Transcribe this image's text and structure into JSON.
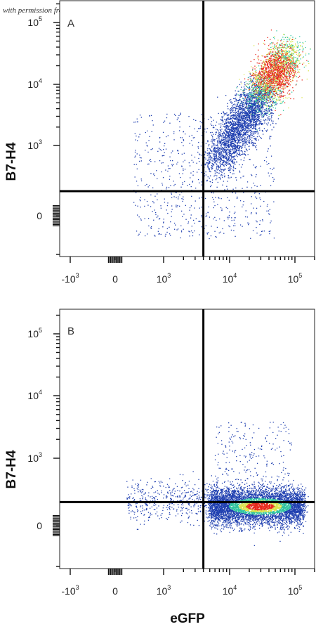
{
  "watermark": "with permission from R&D Systems",
  "colors": {
    "density_low": "#1f3fb0",
    "density_mid": "#2fc4a0",
    "density_mid2": "#d9e54a",
    "density_high": "#e8281c",
    "gate_line": "#000000",
    "frame": "#222222"
  },
  "chart_data": [
    {
      "type": "scatter",
      "panel_label": "A",
      "xlabel": "",
      "ylabel": "B7-H4",
      "x_scale": "biexponential",
      "y_scale": "biexponential",
      "xlim": [
        -3000,
        200000
      ],
      "ylim": [
        -1000,
        200000
      ],
      "x_ticks": [
        {
          "base": "-10",
          "exp": "3"
        },
        {
          "base": "0",
          "exp": ""
        },
        {
          "base": "10",
          "exp": "3"
        },
        {
          "base": "10",
          "exp": "4"
        },
        {
          "base": "10",
          "exp": "5"
        }
      ],
      "y_ticks": [
        {
          "base": "0",
          "exp": ""
        },
        {
          "base": "10",
          "exp": "3"
        },
        {
          "base": "10",
          "exp": "4"
        },
        {
          "base": "10",
          "exp": "5"
        }
      ],
      "quadrant_gates": {
        "x": 4000,
        "y": 350
      },
      "populations": [
        {
          "description": "main double-positive cluster",
          "x_center": 25000,
          "y_center": 7000,
          "spread": "diagonal, 10^3.8–10^5 in x, 10^2.8–10^4.5 in y"
        },
        {
          "description": "sparse scatter",
          "x_center": 2000,
          "y_center": 600
        }
      ]
    },
    {
      "type": "scatter",
      "panel_label": "B",
      "xlabel": "eGFP",
      "ylabel": "B7-H4",
      "x_scale": "biexponential",
      "y_scale": "biexponential",
      "xlim": [
        -3000,
        200000
      ],
      "ylim": [
        -1000,
        200000
      ],
      "x_ticks": [
        {
          "base": "-10",
          "exp": "3"
        },
        {
          "base": "0",
          "exp": ""
        },
        {
          "base": "10",
          "exp": "3"
        },
        {
          "base": "10",
          "exp": "4"
        },
        {
          "base": "10",
          "exp": "5"
        }
      ],
      "y_ticks": [
        {
          "base": "0",
          "exp": ""
        },
        {
          "base": "10",
          "exp": "3"
        },
        {
          "base": "10",
          "exp": "4"
        },
        {
          "base": "10",
          "exp": "5"
        }
      ],
      "quadrant_gates": {
        "x": 4000,
        "y": 350
      },
      "populations": [
        {
          "description": "eGFP-positive, B7-H4-negative cluster",
          "x_center": 30000,
          "y_center": 50,
          "spread": "horizontal band, 10^3.6–10^5 in x"
        },
        {
          "description": "sparse upper scatter",
          "x_center": 40000,
          "y_center": 800
        }
      ]
    }
  ]
}
